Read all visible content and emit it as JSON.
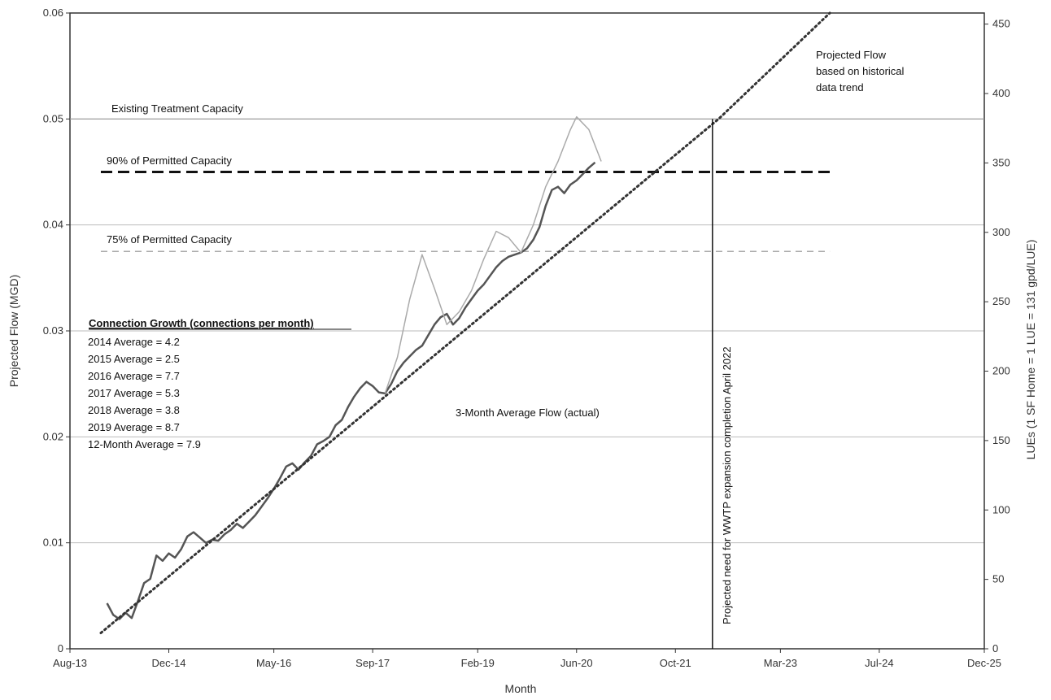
{
  "chart_data": {
    "type": "line",
    "title": "",
    "xlabel": "Month",
    "ylabel": "Projected Flow (MGD)",
    "y2label": "LUEs (1 SF Home = 1 LUE = 131 gpd/LUE)",
    "x_type": "date",
    "xlim": [
      "2013-08",
      "2025-12"
    ],
    "ylim": [
      0,
      0.06
    ],
    "y2lim": [
      0,
      458
    ],
    "grid": true,
    "x_ticks": [
      "Aug-13",
      "Dec-14",
      "May-16",
      "Sep-17",
      "Feb-19",
      "Jun-20",
      "Oct-21",
      "Mar-23",
      "Jul-24",
      "Dec-25"
    ],
    "x_tick_dates": [
      "2013-08",
      "2014-12",
      "2016-05",
      "2017-09",
      "2019-02",
      "2020-06",
      "2021-10",
      "2023-03",
      "2024-07",
      "2025-12"
    ],
    "y_ticks": [
      0,
      0.01,
      0.02,
      0.03,
      0.04,
      0.05,
      0.06
    ],
    "y_tick_labels": [
      "0",
      "0.01",
      "0.02",
      "0.03",
      "0.04",
      "0.05",
      "0.06"
    ],
    "y2_ticks": [
      0,
      50,
      100,
      150,
      200,
      250,
      300,
      350,
      400,
      450
    ],
    "y2_tick_labels": [
      "0",
      "50",
      "100",
      "150",
      "200",
      "250",
      "300",
      "350",
      "400",
      "450"
    ],
    "reference_lines": [
      {
        "label": "Existing Treatment Capacity",
        "y": 0.05,
        "from": "2013-08",
        "to": "2025-12",
        "style": "solid-thin"
      },
      {
        "label": "90% of Permitted Capacity",
        "y": 0.045,
        "from": "2014-01",
        "to": "2023-11",
        "style": "dashed-bold"
      },
      {
        "label": "75% of Permitted Capacity",
        "y": 0.0375,
        "from": "2014-01",
        "to": "2023-11",
        "style": "dashed-light"
      }
    ],
    "series": [
      {
        "name": "3-Month Average Flow (actual)",
        "style": "solid",
        "color": "#555555",
        "points": [
          [
            "2014-02",
            0.0043
          ],
          [
            "2014-03",
            0.0032
          ],
          [
            "2014-04",
            0.0028
          ],
          [
            "2014-05",
            0.0034
          ],
          [
            "2014-06",
            0.0029
          ],
          [
            "2014-07",
            0.0045
          ],
          [
            "2014-08",
            0.0062
          ],
          [
            "2014-09",
            0.0066
          ],
          [
            "2014-10",
            0.0088
          ],
          [
            "2014-11",
            0.0083
          ],
          [
            "2014-12",
            0.009
          ],
          [
            "2015-01",
            0.0086
          ],
          [
            "2015-02",
            0.0094
          ],
          [
            "2015-03",
            0.0106
          ],
          [
            "2015-04",
            0.011
          ],
          [
            "2015-05",
            0.0105
          ],
          [
            "2015-06",
            0.01
          ],
          [
            "2015-07",
            0.0103
          ],
          [
            "2015-08",
            0.0102
          ],
          [
            "2015-09",
            0.0108
          ],
          [
            "2015-10",
            0.0112
          ],
          [
            "2015-11",
            0.0118
          ],
          [
            "2015-12",
            0.0114
          ],
          [
            "2016-01",
            0.012
          ],
          [
            "2016-02",
            0.0126
          ],
          [
            "2016-03",
            0.0134
          ],
          [
            "2016-04",
            0.0142
          ],
          [
            "2016-05",
            0.0151
          ],
          [
            "2016-06",
            0.0161
          ],
          [
            "2016-07",
            0.0172
          ],
          [
            "2016-08",
            0.0175
          ],
          [
            "2016-09",
            0.0169
          ],
          [
            "2016-10",
            0.0176
          ],
          [
            "2016-11",
            0.0182
          ],
          [
            "2016-12",
            0.0193
          ],
          [
            "2017-01",
            0.0196
          ],
          [
            "2017-02",
            0.02
          ],
          [
            "2017-03",
            0.0211
          ],
          [
            "2017-04",
            0.0216
          ],
          [
            "2017-05",
            0.0228
          ],
          [
            "2017-06",
            0.0238
          ],
          [
            "2017-07",
            0.0246
          ],
          [
            "2017-08",
            0.0252
          ],
          [
            "2017-09",
            0.0248
          ],
          [
            "2017-10",
            0.0242
          ],
          [
            "2017-11",
            0.0241
          ],
          [
            "2017-12",
            0.025
          ],
          [
            "2018-01",
            0.0262
          ],
          [
            "2018-02",
            0.027
          ],
          [
            "2018-03",
            0.0276
          ],
          [
            "2018-04",
            0.0282
          ],
          [
            "2018-05",
            0.0286
          ],
          [
            "2018-06",
            0.0296
          ],
          [
            "2018-07",
            0.0306
          ],
          [
            "2018-08",
            0.0313
          ],
          [
            "2018-09",
            0.0316
          ],
          [
            "2018-10",
            0.0306
          ],
          [
            "2018-11",
            0.0312
          ],
          [
            "2018-12",
            0.0322
          ],
          [
            "2019-01",
            0.033
          ],
          [
            "2019-02",
            0.0338
          ],
          [
            "2019-03",
            0.0344
          ],
          [
            "2019-04",
            0.0352
          ],
          [
            "2019-05",
            0.036
          ],
          [
            "2019-06",
            0.0366
          ],
          [
            "2019-07",
            0.037
          ],
          [
            "2019-08",
            0.0372
          ],
          [
            "2019-09",
            0.0374
          ],
          [
            "2019-10",
            0.0378
          ],
          [
            "2019-11",
            0.0386
          ],
          [
            "2019-12",
            0.0398
          ],
          [
            "2020-01",
            0.0418
          ],
          [
            "2020-02",
            0.0433
          ],
          [
            "2020-03",
            0.0436
          ],
          [
            "2020-04",
            0.043
          ],
          [
            "2020-05",
            0.0438
          ],
          [
            "2020-06",
            0.0442
          ],
          [
            "2020-07",
            0.0448
          ],
          [
            "2020-08",
            0.0454
          ],
          [
            "2020-09",
            0.0459
          ]
        ]
      },
      {
        "name": "",
        "style": "thin-light",
        "color": "#aaaaaa",
        "points": [
          [
            "2017-11",
            0.0241
          ],
          [
            "2018-01",
            0.0275
          ],
          [
            "2018-03",
            0.033
          ],
          [
            "2018-05",
            0.0372
          ],
          [
            "2018-07",
            0.034
          ],
          [
            "2018-09",
            0.0306
          ],
          [
            "2018-11",
            0.0318
          ],
          [
            "2019-01",
            0.0338
          ],
          [
            "2019-03",
            0.0368
          ],
          [
            "2019-05",
            0.0394
          ],
          [
            "2019-07",
            0.0388
          ],
          [
            "2019-09",
            0.0374
          ],
          [
            "2019-11",
            0.04
          ],
          [
            "2020-01",
            0.0436
          ],
          [
            "2020-03",
            0.046
          ],
          [
            "2020-05",
            0.049
          ],
          [
            "2020-06",
            0.0502
          ],
          [
            "2020-08",
            0.049
          ],
          [
            "2020-10",
            0.046
          ]
        ]
      },
      {
        "name": "Projected Flow based on historical data trend",
        "style": "dotted",
        "color": "#333333",
        "points": [
          [
            "2014-01",
            0.0015
          ],
          [
            "2022-05",
            0.05
          ],
          [
            "2023-11",
            0.06
          ]
        ]
      }
    ],
    "vertical_marker": {
      "label": "Projected need for WWTP expansion completion April 2022",
      "x": "2022-04"
    },
    "annotations": [
      {
        "label": "Existing Treatment Capacity"
      },
      {
        "label": "90% of Permitted Capacity"
      },
      {
        "label": "75% of Permitted Capacity"
      },
      {
        "label": "3-Month Average Flow (actual)"
      }
    ],
    "projected_label_lines": [
      "Projected Flow",
      "based on historical",
      "data trend"
    ],
    "connection_growth": {
      "title": "Connection Growth (connections per month)",
      "items": [
        "2014 Average = 4.2",
        "2015 Average = 2.5",
        "2016 Average = 7.7",
        "2017 Average = 5.3",
        "2018 Average = 3.8",
        "2019 Average = 8.7",
        "12-Month Average = 7.9"
      ]
    }
  }
}
